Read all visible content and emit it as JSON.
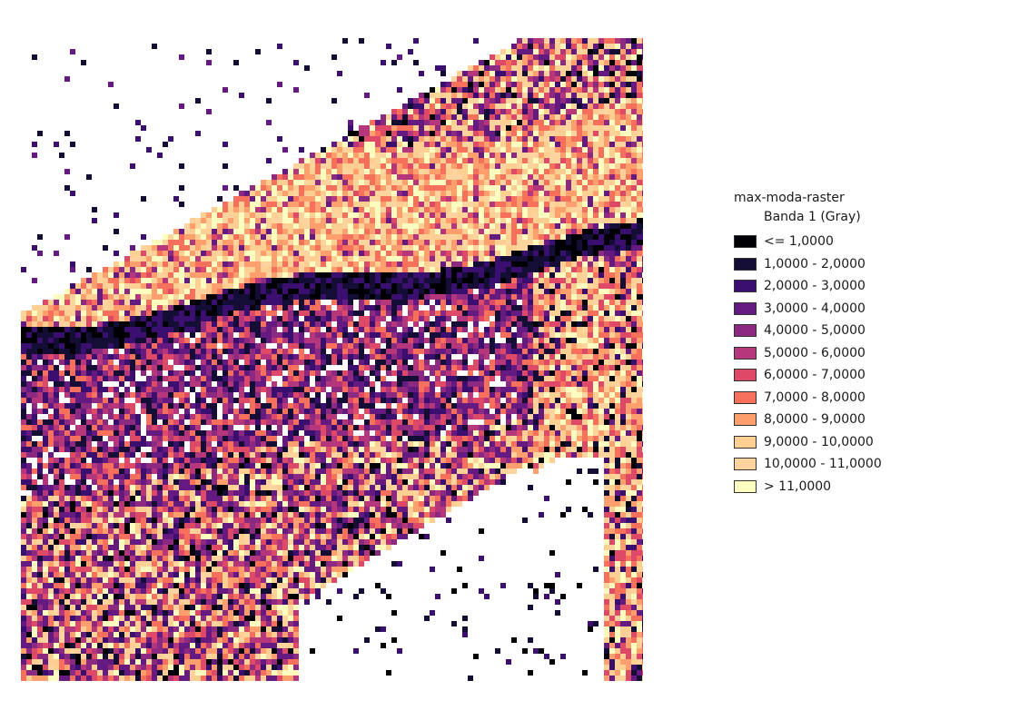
{
  "map": {
    "layer_title": "max-moda-raster",
    "band_label": "Banda 1 (Gray)"
  },
  "legend": {
    "classes": [
      {
        "label": "<= 1,0000",
        "color": "#000004"
      },
      {
        "label": "1,0000 - 2,0000",
        "color": "#140e36"
      },
      {
        "label": "2,0000 - 3,0000",
        "color": "#3b0f70"
      },
      {
        "label": "3,0000 - 4,0000",
        "color": "#641a80"
      },
      {
        "label": "4,0000 - 5,0000",
        "color": "#8c2981"
      },
      {
        "label": "5,0000 - 6,0000",
        "color": "#b5367a"
      },
      {
        "label": "6,0000 - 7,0000",
        "color": "#de4968"
      },
      {
        "label": "7,0000 - 8,0000",
        "color": "#f7705c"
      },
      {
        "label": "8,0000 - 9,0000",
        "color": "#fe9f6d"
      },
      {
        "label": "9,0000 - 10,0000",
        "color": "#fecf92"
      },
      {
        "label": "10,0000 - 11,0000",
        "color": "#fdd49e"
      },
      {
        "label": "> 11,0000",
        "color": "#fcfdbf"
      }
    ]
  }
}
